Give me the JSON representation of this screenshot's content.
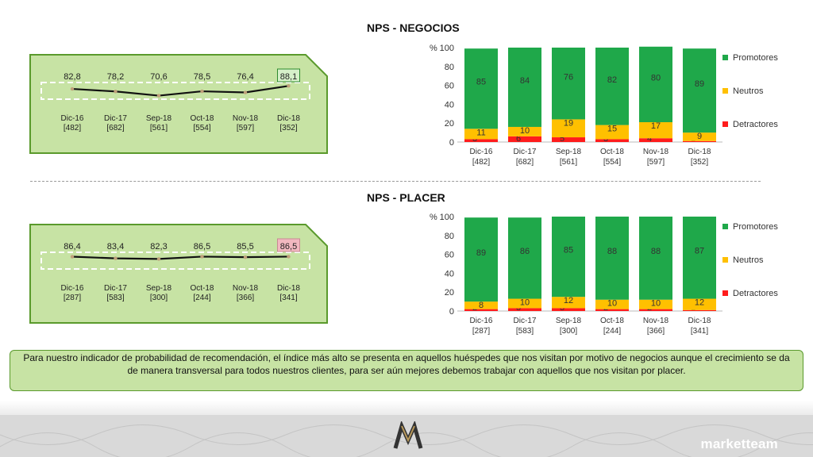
{
  "sections": [
    {
      "title": "NPS - NEGOCIOS",
      "line": {
        "values": [
          82.8,
          78.2,
          70.6,
          78.5,
          76.4,
          88.1
        ],
        "value_labels": [
          "82,8",
          "78,2",
          "70,6",
          "78,5",
          "76,4",
          "88,1"
        ],
        "categories": [
          "Dic-16",
          "Dic-17",
          "Sep-18",
          "Oct-18",
          "Nov-18",
          "Dic-18"
        ],
        "bases": [
          "[482]",
          "[682]",
          "[561]",
          "[554]",
          "[597]",
          "[352]"
        ],
        "highlight_last_color": "#d6f0c9",
        "highlight_last_border": "#2e8b2e"
      },
      "bar": {
        "type": "bar",
        "unit_label": "%",
        "ylim": [
          0,
          100
        ],
        "yticks": [
          "0",
          "20",
          "40",
          "60",
          "80",
          "100"
        ],
        "categories": [
          "Dic-16",
          "Dic-17",
          "Sep-18",
          "Oct-18",
          "Nov-18",
          "Dic-18"
        ],
        "bases": [
          "[482]",
          "[682]",
          "[561]",
          "[554]",
          "[597]",
          "[352]"
        ],
        "series": [
          {
            "name": "Detractores",
            "color": "#ff1c1c",
            "values": [
              3,
              6,
              5,
              3,
              4,
              1
            ]
          },
          {
            "name": "Neutros",
            "color": "#ffc000",
            "values": [
              11,
              10,
              19,
              15,
              17,
              9
            ]
          },
          {
            "name": "Promotores",
            "color": "#1fa84a",
            "values": [
              85,
              84,
              76,
              82,
              80,
              89
            ]
          }
        ],
        "legend_order": [
          "Promotores",
          "Neutros",
          "Detractores"
        ]
      }
    },
    {
      "title": "NPS - PLACER",
      "line": {
        "values": [
          86.4,
          83.4,
          82.3,
          86.5,
          85.5,
          86.5
        ],
        "value_labels": [
          "86,4",
          "83,4",
          "82,3",
          "86,5",
          "85,5",
          "86,5"
        ],
        "categories": [
          "Dic-16",
          "Dic-17",
          "Sep-18",
          "Oct-18",
          "Nov-18",
          "Dic-18"
        ],
        "bases": [
          "[287]",
          "[583]",
          "[300]",
          "[244]",
          "[366]",
          "[341]"
        ],
        "highlight_last_color": "#f2b8c0",
        "highlight_last_border": "#c98a94"
      },
      "bar": {
        "type": "bar",
        "unit_label": "%",
        "ylim": [
          0,
          100
        ],
        "yticks": [
          "0",
          "20",
          "40",
          "60",
          "80",
          "100"
        ],
        "categories": [
          "Dic-16",
          "Dic-17",
          "Sep-18",
          "Oct-18",
          "Nov-18",
          "Dic-18"
        ],
        "bases": [
          "[287]",
          "[583]",
          "[300]",
          "[244]",
          "[366]",
          "[341]"
        ],
        "series": [
          {
            "name": "Detractores",
            "color": "#ff1c1c",
            "values": [
              2,
              3,
              3,
              2,
              2,
              1
            ]
          },
          {
            "name": "Neutros",
            "color": "#ffc000",
            "values": [
              8,
              10,
              12,
              10,
              10,
              12
            ]
          },
          {
            "name": "Promotores",
            "color": "#1fa84a",
            "values": [
              89,
              86,
              85,
              88,
              88,
              87
            ]
          }
        ],
        "legend_order": [
          "Promotores",
          "Neutros",
          "Detractores"
        ]
      }
    }
  ],
  "note": "Para nuestro indicador de probabilidad de recomendación, el índice más alto se presenta en aquellos huéspedes que nos visitan por motivo de negocios aunque el crecimiento se da de manera transversal para todos nuestros clientes, para ser aún mejores debemos trabajar con aquellos que nos visitan por placer.",
  "brand": "marketteam",
  "colors": {
    "panel_fill": "#c7e3a4",
    "panel_border": "#5a9a2c"
  }
}
